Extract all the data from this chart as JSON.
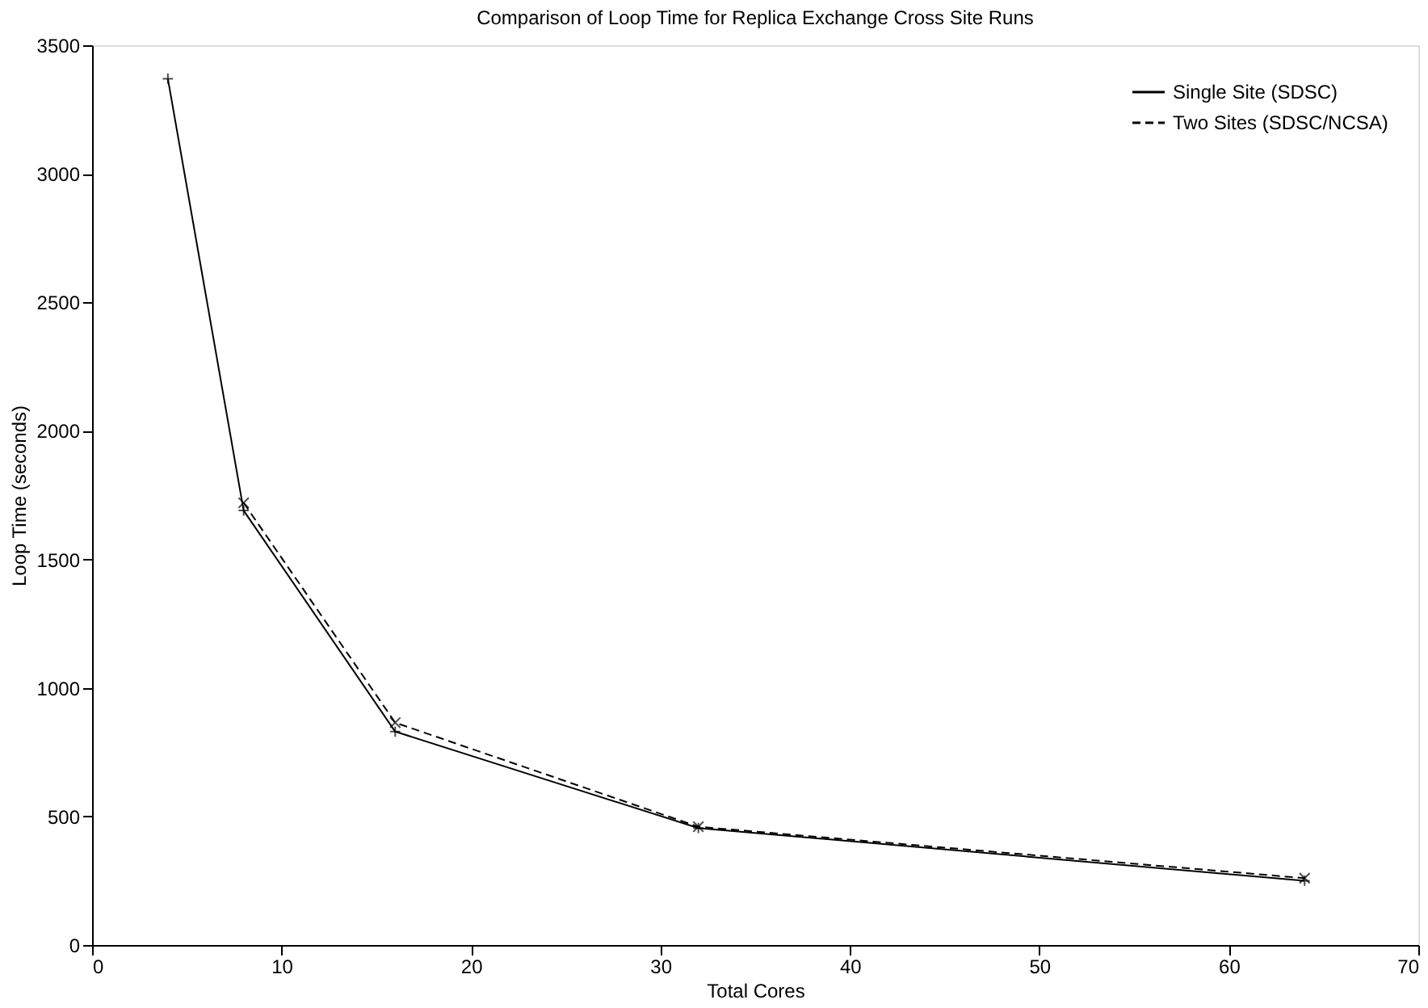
{
  "chart_data": {
    "type": "line",
    "title": "Comparison of Loop Time for Replica Exchange Cross Site Runs",
    "xlabel": "Total Cores",
    "ylabel": "Loop Time (seconds)",
    "xlim": [
      0,
      70
    ],
    "xticks": [
      0,
      10,
      20,
      30,
      40,
      50,
      60,
      70
    ],
    "ylim": [
      0,
      3500
    ],
    "yticks": [
      0,
      500,
      1000,
      1500,
      2000,
      2500,
      3000,
      3500
    ],
    "grid": false,
    "legend": "top right",
    "series": [
      {
        "name": "Single Site (SDSC)",
        "color": "#000000",
        "x": [
          4,
          8,
          16,
          32,
          64
        ],
        "values": [
          3370,
          1690,
          830,
          455,
          250
        ],
        "marker": "cross",
        "line_style": "solid"
      },
      {
        "name": "Two Sites (SDSC/NCSA)",
        "color": "#000000",
        "x": [
          8,
          16,
          32,
          64
        ],
        "values": [
          1720,
          865,
          460,
          260
        ],
        "marker": "x",
        "line_style": "dashed"
      }
    ]
  }
}
